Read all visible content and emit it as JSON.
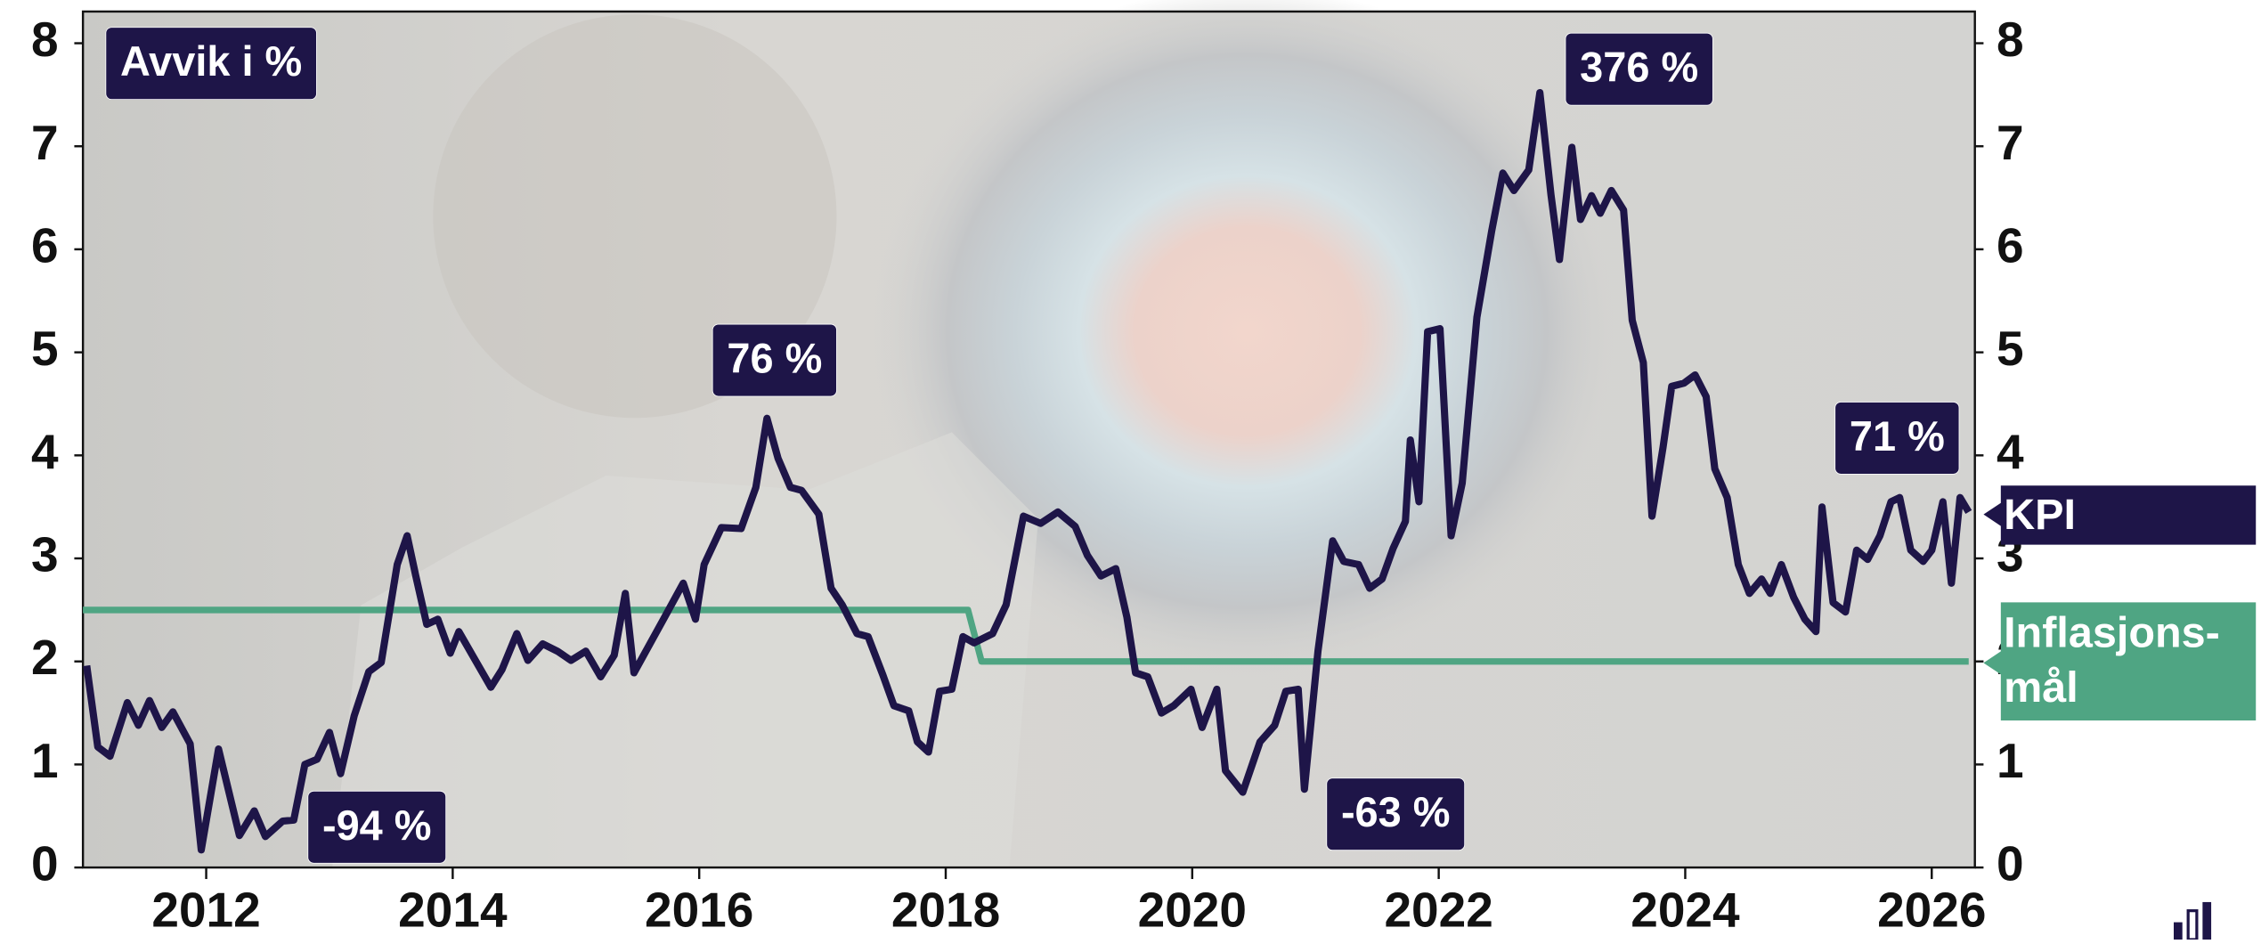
{
  "chart_data": {
    "type": "line",
    "annotations": [
      "Avvik i %",
      "-94 %",
      "76 %",
      "-63 %",
      "376 %",
      "71 %"
    ],
    "xlim": [
      2011,
      2026.35
    ],
    "xticks": [
      2012,
      2014,
      2016,
      2018,
      2020,
      2022,
      2024,
      2026
    ],
    "ylim": [
      0,
      8
    ],
    "yticks": [
      0,
      1,
      2,
      3,
      4,
      5,
      6,
      7,
      8
    ],
    "y2lim": [
      0,
      8
    ],
    "y2ticks": [
      0,
      1,
      2,
      3,
      4,
      5,
      6,
      7,
      8
    ],
    "series": [
      {
        "name": "KPI",
        "color": "#1e1548",
        "x": [
          2011.03,
          2011.12,
          2011.22,
          2011.36,
          2011.45,
          2011.54,
          2011.64,
          2011.73,
          2011.87,
          2011.96,
          2012.1,
          2012.27,
          2012.39,
          2012.48,
          2012.62,
          2012.71,
          2012.8,
          2012.9,
          2013.0,
          2013.09,
          2013.2,
          2013.32,
          2013.42,
          2013.55,
          2013.63,
          2013.7,
          2013.79,
          2013.88,
          2013.98,
          2014.05,
          2014.16,
          2014.31,
          2014.4,
          2014.52,
          2014.61,
          2014.73,
          2014.85,
          2014.96,
          2015.08,
          2015.2,
          2015.31,
          2015.4,
          2015.47,
          2015.71,
          2015.87,
          2015.97,
          2016.04,
          2016.18,
          2016.34,
          2016.46,
          2016.55,
          2016.64,
          2016.74,
          2016.83,
          2016.97,
          2017.07,
          2017.16,
          2017.28,
          2017.37,
          2017.49,
          2017.58,
          2017.7,
          2017.77,
          2017.86,
          2017.95,
          2018.05,
          2018.14,
          2018.23,
          2018.38,
          2018.49,
          2018.63,
          2018.77,
          2018.91,
          2019.05,
          2019.15,
          2019.26,
          2019.38,
          2019.47,
          2019.54,
          2019.64,
          2019.75,
          2019.85,
          2019.99,
          2020.08,
          2020.2,
          2020.27,
          2020.41,
          2020.55,
          2020.67,
          2020.76,
          2020.86,
          2020.91,
          2021.02,
          2021.14,
          2021.23,
          2021.35,
          2021.44,
          2021.54,
          2021.63,
          2021.73,
          2021.77,
          2021.84,
          2021.91,
          2022.01,
          2022.1,
          2022.19,
          2022.31,
          2022.43,
          2022.52,
          2022.61,
          2022.73,
          2022.82,
          2022.91,
          2022.98,
          2023.08,
          2023.15,
          2023.24,
          2023.31,
          2023.4,
          2023.5,
          2023.57,
          2023.66,
          2023.73,
          2023.82,
          2023.89,
          2023.99,
          2024.08,
          2024.17,
          2024.24,
          2024.34,
          2024.43,
          2024.52,
          2024.62,
          2024.69,
          2024.78,
          2024.88,
          2024.97,
          2025.06,
          2025.11,
          2025.2,
          2025.3,
          2025.39,
          2025.48,
          2025.58,
          2025.67,
          2025.74,
          2025.83,
          2025.93,
          2026.0,
          2026.09,
          2026.16,
          2026.23,
          2026.3
        ],
        "values": [
          1.96,
          1.17,
          1.08,
          1.6,
          1.38,
          1.62,
          1.36,
          1.51,
          1.2,
          0.17,
          1.15,
          0.31,
          0.55,
          0.3,
          0.45,
          0.46,
          1.0,
          1.05,
          1.31,
          0.91,
          1.47,
          1.9,
          1.99,
          2.94,
          3.22,
          2.83,
          2.36,
          2.41,
          2.08,
          2.29,
          2.06,
          1.75,
          1.92,
          2.27,
          2.01,
          2.17,
          2.1,
          2.01,
          2.1,
          1.85,
          2.06,
          2.66,
          1.89,
          2.41,
          2.76,
          2.41,
          2.94,
          3.3,
          3.29,
          3.69,
          4.36,
          3.97,
          3.69,
          3.66,
          3.43,
          2.71,
          2.55,
          2.27,
          2.24,
          1.87,
          1.57,
          1.52,
          1.22,
          1.12,
          1.71,
          1.73,
          2.24,
          2.18,
          2.27,
          2.55,
          3.41,
          3.34,
          3.45,
          3.31,
          3.03,
          2.83,
          2.9,
          2.43,
          1.89,
          1.85,
          1.5,
          1.57,
          1.73,
          1.36,
          1.73,
          0.94,
          0.73,
          1.22,
          1.38,
          1.71,
          1.73,
          0.76,
          2.1,
          3.17,
          2.97,
          2.94,
          2.71,
          2.8,
          3.1,
          3.36,
          4.15,
          3.55,
          5.2,
          5.23,
          3.22,
          3.73,
          5.34,
          6.18,
          6.74,
          6.57,
          6.77,
          7.52,
          6.53,
          5.9,
          6.99,
          6.29,
          6.52,
          6.35,
          6.57,
          6.38,
          5.31,
          4.9,
          3.41,
          4.08,
          4.67,
          4.7,
          4.78,
          4.57,
          3.87,
          3.59,
          2.94,
          2.66,
          2.8,
          2.66,
          2.94,
          2.62,
          2.41,
          2.29,
          3.5,
          2.57,
          2.48,
          3.08,
          2.99,
          3.22,
          3.55,
          3.59,
          3.08,
          2.97,
          3.08,
          3.55,
          2.76,
          3.59,
          3.45
        ]
      },
      {
        "name": "Inflasjons-mål",
        "color": "#4fa583",
        "x": [
          2011,
          2018.18,
          2018.29,
          2026.3
        ],
        "values": [
          2.5,
          2.5,
          2.0,
          2.0
        ]
      }
    ]
  }
}
